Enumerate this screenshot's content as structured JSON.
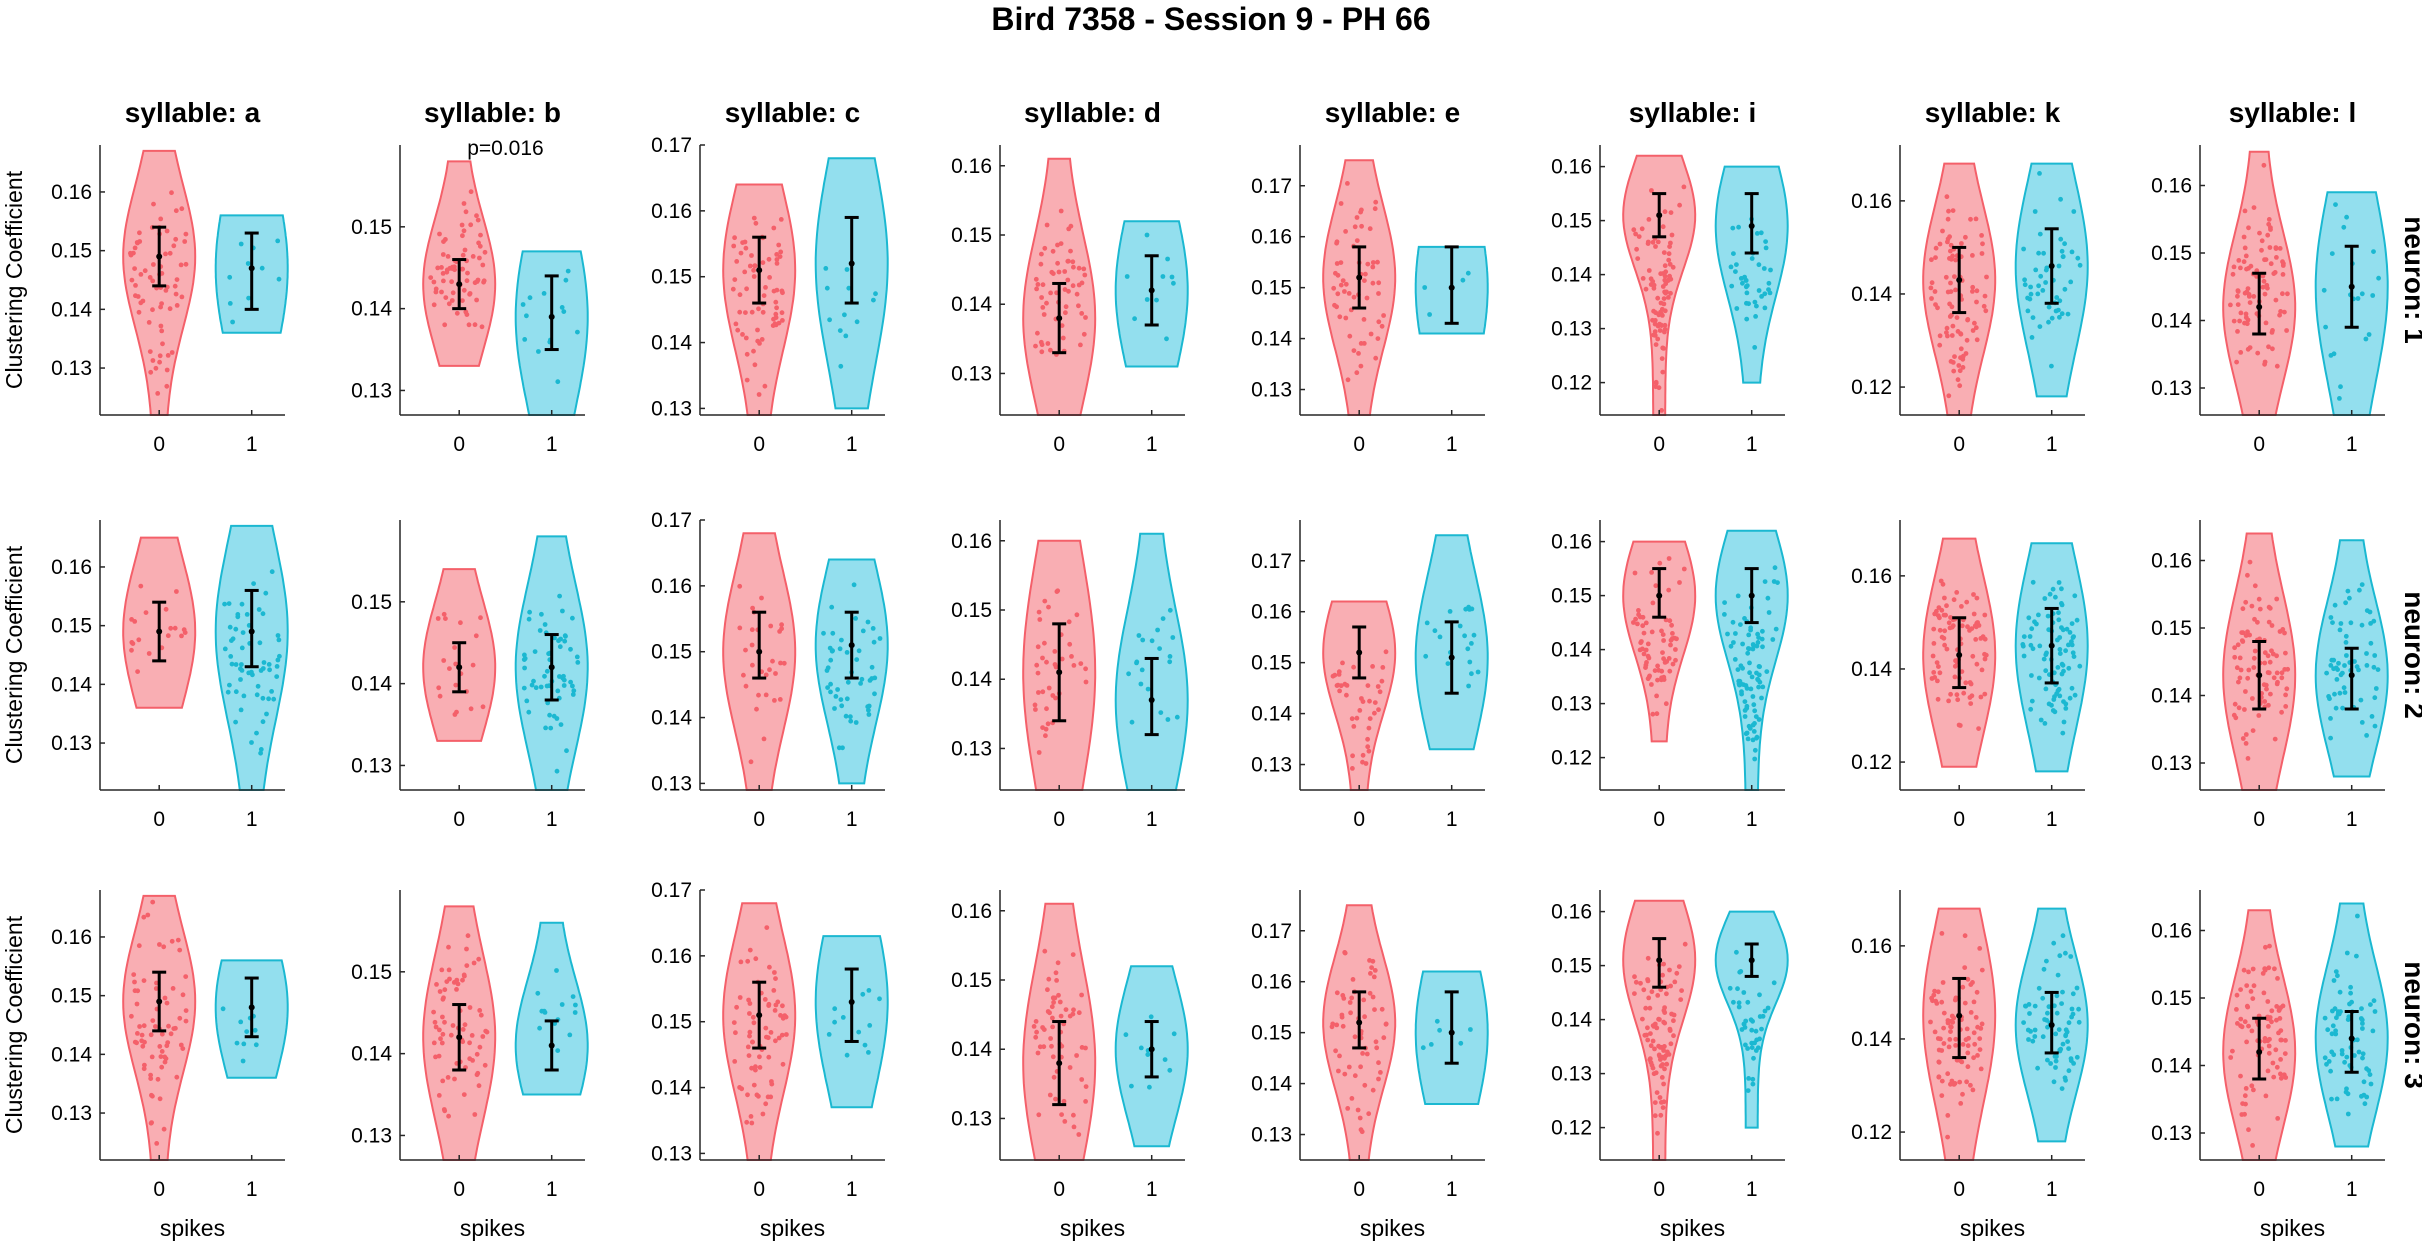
{
  "chart_data": {
    "type": "violin",
    "title": "Bird 7358 - Session 9 - PH 66",
    "ylabel": "Clustering Coefficient",
    "xlabel": "spikes",
    "categories": [
      "0",
      "1"
    ],
    "colors": {
      "0": "#f4606a",
      "1": "#1bb8d1"
    },
    "columns": [
      "syllable: a",
      "syllable: b",
      "syllable: c",
      "syllable: d",
      "syllable: e",
      "syllable: i",
      "syllable: k",
      "syllable: l"
    ],
    "rows": [
      "neuron: 1",
      "neuron: 2",
      "neuron: 3"
    ],
    "panel_ylims": [
      [
        0.122,
        0.168
      ],
      [
        0.127,
        0.16
      ],
      [
        0.129,
        0.17
      ],
      [
        0.124,
        0.163
      ],
      [
        0.125,
        0.178
      ],
      [
        0.114,
        0.164
      ],
      [
        0.114,
        0.172
      ],
      [
        0.126,
        0.166
      ]
    ],
    "panel_yticks": [
      [
        "0.13",
        "0.14",
        "0.15",
        "0.16"
      ],
      [
        "0.13",
        "0.14",
        "0.15"
      ],
      [
        "0.13",
        "0.14",
        "0.15",
        "0.16",
        "0.17"
      ],
      [
        "0.13",
        "0.14",
        "0.15",
        "0.16"
      ],
      [
        "0.13",
        "0.14",
        "0.15",
        "0.16",
        "0.17"
      ],
      [
        "0.12",
        "0.13",
        "0.14",
        "0.15",
        "0.16"
      ],
      [
        "0.12",
        "0.14",
        "0.16"
      ],
      [
        "0.13",
        "0.14",
        "0.15",
        "0.16"
      ]
    ],
    "annotations": [
      {
        "row": 0,
        "col": 1,
        "text": "p=0.016"
      }
    ],
    "panels": [
      [
        {
          "g0": {
            "min": 0.122,
            "max": 0.167,
            "mean": 0.149,
            "lo": 0.144,
            "hi": 0.154,
            "n": 70
          },
          "g1": {
            "min": 0.136,
            "max": 0.156,
            "mean": 0.147,
            "lo": 0.14,
            "hi": 0.153,
            "n": 10
          }
        },
        {
          "g0": {
            "min": 0.133,
            "max": 0.158,
            "mean": 0.143,
            "lo": 0.14,
            "hi": 0.146,
            "n": 70
          },
          "g1": {
            "min": 0.127,
            "max": 0.147,
            "mean": 0.139,
            "lo": 0.135,
            "hi": 0.144,
            "n": 14
          }
        },
        {
          "g0": {
            "min": 0.129,
            "max": 0.164,
            "mean": 0.151,
            "lo": 0.146,
            "hi": 0.156,
            "n": 70
          },
          "g1": {
            "min": 0.13,
            "max": 0.168,
            "mean": 0.152,
            "lo": 0.146,
            "hi": 0.159,
            "n": 12
          }
        },
        {
          "g0": {
            "min": 0.124,
            "max": 0.161,
            "mean": 0.138,
            "lo": 0.133,
            "hi": 0.143,
            "n": 60
          },
          "g1": {
            "min": 0.131,
            "max": 0.152,
            "mean": 0.142,
            "lo": 0.137,
            "hi": 0.147,
            "n": 10
          }
        },
        {
          "g0": {
            "min": 0.125,
            "max": 0.175,
            "mean": 0.152,
            "lo": 0.146,
            "hi": 0.158,
            "n": 60
          },
          "g1": {
            "min": 0.141,
            "max": 0.158,
            "mean": 0.15,
            "lo": 0.143,
            "hi": 0.158,
            "n": 4
          }
        },
        {
          "g0": {
            "min": 0.114,
            "max": 0.162,
            "mean": 0.151,
            "lo": 0.147,
            "hi": 0.155,
            "n": 110
          },
          "g1": {
            "min": 0.12,
            "max": 0.16,
            "mean": 0.149,
            "lo": 0.144,
            "hi": 0.155,
            "n": 40
          }
        },
        {
          "g0": {
            "min": 0.114,
            "max": 0.168,
            "mean": 0.143,
            "lo": 0.136,
            "hi": 0.15,
            "n": 160
          },
          "g1": {
            "min": 0.118,
            "max": 0.168,
            "mean": 0.146,
            "lo": 0.138,
            "hi": 0.154,
            "n": 50
          }
        },
        {
          "g0": {
            "min": 0.126,
            "max": 0.165,
            "mean": 0.142,
            "lo": 0.138,
            "hi": 0.147,
            "n": 120
          },
          "g1": {
            "min": 0.126,
            "max": 0.159,
            "mean": 0.145,
            "lo": 0.139,
            "hi": 0.151,
            "n": 20
          }
        }
      ],
      [
        {
          "g0": {
            "min": 0.136,
            "max": 0.165,
            "mean": 0.149,
            "lo": 0.144,
            "hi": 0.154,
            "n": 20
          },
          "g1": {
            "min": 0.122,
            "max": 0.167,
            "mean": 0.149,
            "lo": 0.143,
            "hi": 0.156,
            "n": 60
          }
        },
        {
          "g0": {
            "min": 0.133,
            "max": 0.154,
            "mean": 0.142,
            "lo": 0.139,
            "hi": 0.145,
            "n": 20
          },
          "g1": {
            "min": 0.127,
            "max": 0.158,
            "mean": 0.142,
            "lo": 0.138,
            "hi": 0.146,
            "n": 60
          }
        },
        {
          "g0": {
            "min": 0.129,
            "max": 0.168,
            "mean": 0.15,
            "lo": 0.146,
            "hi": 0.156,
            "n": 30
          },
          "g1": {
            "min": 0.13,
            "max": 0.164,
            "mean": 0.151,
            "lo": 0.146,
            "hi": 0.156,
            "n": 50
          }
        },
        {
          "g0": {
            "min": 0.124,
            "max": 0.16,
            "mean": 0.141,
            "lo": 0.134,
            "hi": 0.148,
            "n": 40
          },
          "g1": {
            "min": 0.124,
            "max": 0.161,
            "mean": 0.137,
            "lo": 0.132,
            "hi": 0.143,
            "n": 20
          }
        },
        {
          "g0": {
            "min": 0.125,
            "max": 0.162,
            "mean": 0.152,
            "lo": 0.147,
            "hi": 0.157,
            "n": 40
          },
          "g1": {
            "min": 0.133,
            "max": 0.175,
            "mean": 0.151,
            "lo": 0.144,
            "hi": 0.158,
            "n": 20
          }
        },
        {
          "g0": {
            "min": 0.123,
            "max": 0.16,
            "mean": 0.15,
            "lo": 0.146,
            "hi": 0.155,
            "n": 70
          },
          "g1": {
            "min": 0.114,
            "max": 0.162,
            "mean": 0.15,
            "lo": 0.145,
            "hi": 0.155,
            "n": 90
          }
        },
        {
          "g0": {
            "min": 0.119,
            "max": 0.168,
            "mean": 0.143,
            "lo": 0.136,
            "hi": 0.151,
            "n": 100
          },
          "g1": {
            "min": 0.118,
            "max": 0.167,
            "mean": 0.145,
            "lo": 0.137,
            "hi": 0.153,
            "n": 90
          }
        },
        {
          "g0": {
            "min": 0.126,
            "max": 0.164,
            "mean": 0.143,
            "lo": 0.138,
            "hi": 0.148,
            "n": 90
          },
          "g1": {
            "min": 0.128,
            "max": 0.163,
            "mean": 0.143,
            "lo": 0.138,
            "hi": 0.147,
            "n": 60
          }
        }
      ],
      [
        {
          "g0": {
            "min": 0.122,
            "max": 0.167,
            "mean": 0.149,
            "lo": 0.144,
            "hi": 0.154,
            "n": 70
          },
          "g1": {
            "min": 0.136,
            "max": 0.156,
            "mean": 0.148,
            "lo": 0.143,
            "hi": 0.153,
            "n": 10
          }
        },
        {
          "g0": {
            "min": 0.127,
            "max": 0.158,
            "mean": 0.142,
            "lo": 0.138,
            "hi": 0.146,
            "n": 70
          },
          "g1": {
            "min": 0.135,
            "max": 0.156,
            "mean": 0.141,
            "lo": 0.138,
            "hi": 0.144,
            "n": 14
          }
        },
        {
          "g0": {
            "min": 0.129,
            "max": 0.168,
            "mean": 0.151,
            "lo": 0.146,
            "hi": 0.156,
            "n": 70
          },
          "g1": {
            "min": 0.137,
            "max": 0.163,
            "mean": 0.153,
            "lo": 0.147,
            "hi": 0.158,
            "n": 12
          }
        },
        {
          "g0": {
            "min": 0.124,
            "max": 0.161,
            "mean": 0.138,
            "lo": 0.132,
            "hi": 0.144,
            "n": 60
          },
          "g1": {
            "min": 0.126,
            "max": 0.152,
            "mean": 0.14,
            "lo": 0.136,
            "hi": 0.144,
            "n": 10
          }
        },
        {
          "g0": {
            "min": 0.125,
            "max": 0.175,
            "mean": 0.152,
            "lo": 0.147,
            "hi": 0.158,
            "n": 60
          },
          "g1": {
            "min": 0.136,
            "max": 0.162,
            "mean": 0.15,
            "lo": 0.144,
            "hi": 0.158,
            "n": 6
          }
        },
        {
          "g0": {
            "min": 0.114,
            "max": 0.162,
            "mean": 0.151,
            "lo": 0.146,
            "hi": 0.155,
            "n": 110
          },
          "g1": {
            "min": 0.12,
            "max": 0.16,
            "mean": 0.151,
            "lo": 0.148,
            "hi": 0.154,
            "n": 40
          }
        },
        {
          "g0": {
            "min": 0.114,
            "max": 0.168,
            "mean": 0.145,
            "lo": 0.136,
            "hi": 0.153,
            "n": 160
          },
          "g1": {
            "min": 0.118,
            "max": 0.168,
            "mean": 0.143,
            "lo": 0.137,
            "hi": 0.15,
            "n": 70
          }
        },
        {
          "g0": {
            "min": 0.126,
            "max": 0.163,
            "mean": 0.142,
            "lo": 0.138,
            "hi": 0.147,
            "n": 110
          },
          "g1": {
            "min": 0.128,
            "max": 0.164,
            "mean": 0.144,
            "lo": 0.139,
            "hi": 0.148,
            "n": 70
          }
        }
      ]
    ]
  }
}
